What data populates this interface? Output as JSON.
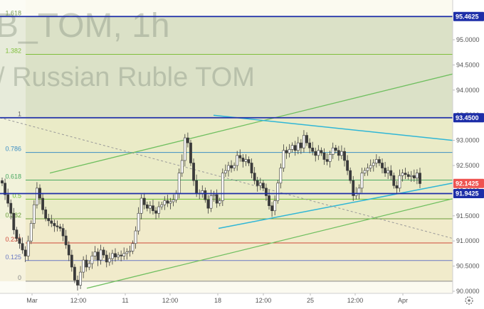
{
  "watermark": {
    "symbol": "B_TOM, 1h",
    "name": "/ Russian Ruble TOM"
  },
  "colors": {
    "up": "#26a69a",
    "down": "#ef5350",
    "body_dark": "#3b3b3b",
    "level_blue": "#1d2ea8",
    "green_line": "#6fbf5f",
    "cyan_line": "#2fb6d6",
    "dash": "#999999",
    "zone_top": "#d5dcc0",
    "zone_mid": "#e6e7c0",
    "zone_low": "#efe7c4"
  },
  "icons": {
    "settings": "gear-icon"
  },
  "chart_data": {
    "type": "candlestick",
    "title": "",
    "xlabel": "",
    "ylabel": "",
    "ylim": [
      90.0,
      95.6
    ],
    "y_ticks": [
      "95.0000",
      "94.5000",
      "94.0000",
      "93.5000",
      "93.0000",
      "92.5000",
      "92.0000",
      "91.5000",
      "91.0000",
      "90.5000",
      "90.0000"
    ],
    "x_ticks": [
      "Mar",
      "12:00",
      "11",
      "12:00",
      "18",
      "12:00",
      "25",
      "12:00",
      "Apr"
    ],
    "grid": false,
    "fib_levels": [
      {
        "label": "1.618",
        "value": 95.4625
      },
      {
        "label": "1.382",
        "value": 94.71
      },
      {
        "label": "1",
        "value": 93.45
      },
      {
        "label": "0.786",
        "value": 92.76
      },
      {
        "label": "0.618",
        "value": 92.21
      },
      {
        "label": "0.5",
        "value": 91.83
      },
      {
        "label": "0.382",
        "value": 91.44
      },
      {
        "label": "0.236",
        "value": 90.96
      },
      {
        "label": "0.125",
        "value": 90.61
      },
      {
        "label": "0",
        "value": 90.2
      }
    ],
    "price_tags": [
      {
        "label": "95.4625",
        "value": 95.4625,
        "color": "#1d2ea8"
      },
      {
        "label": "93.4500",
        "value": 93.45,
        "color": "#1d2ea8"
      },
      {
        "label": "92.1425",
        "value": 92.1425,
        "color": "#ef5350"
      },
      {
        "label": "91.9425",
        "value": 91.9425,
        "color": "#1d2ea8"
      }
    ],
    "horizontal_lines": [
      95.4625,
      93.45,
      91.9425
    ],
    "trend_lines": [
      {
        "name": "green-upper",
        "from": [
          "Mar 4",
          92.35
        ],
        "to": [
          "Apr 3",
          94.32
        ]
      },
      {
        "name": "green-lower",
        "from": [
          "Mar 8",
          90.06
        ],
        "to": [
          "Apr 3",
          91.84
        ]
      },
      {
        "name": "cyan-upper",
        "from": [
          "Mar 18",
          93.5
        ],
        "to": [
          "Apr 3",
          93.0
        ]
      },
      {
        "name": "cyan-lower",
        "from": [
          "Mar 18",
          91.25
        ],
        "to": [
          "Apr 3",
          92.15
        ]
      },
      {
        "name": "dashed-fib-diagonal",
        "from": [
          "Feb 29",
          93.45
        ],
        "to": [
          "Apr 3",
          91.05
        ]
      }
    ],
    "series": [
      {
        "name": "",
        "ohlc_close_path": [
          92.15,
          91.92,
          91.75,
          91.55,
          91.22,
          91.05,
          90.95,
          90.82,
          90.7,
          91.0,
          91.35,
          91.72,
          92.05,
          91.85,
          91.62,
          91.45,
          91.4,
          91.35,
          91.3,
          91.28,
          91.25,
          91.1,
          90.92,
          90.72,
          90.48,
          90.22,
          90.12,
          90.38,
          90.62,
          90.48,
          90.55,
          90.7,
          90.78,
          90.62,
          90.82,
          90.72,
          90.58,
          90.65,
          90.75,
          90.68,
          90.72,
          90.7,
          90.75,
          90.78,
          90.8,
          90.95,
          91.2,
          91.55,
          91.85,
          91.72,
          91.65,
          91.7,
          91.6,
          91.55,
          91.68,
          91.72,
          91.8,
          91.75,
          91.78,
          91.82,
          91.95,
          92.35,
          92.6,
          93.05,
          92.95,
          92.55,
          92.2,
          91.95,
          91.95,
          92.0,
          91.82,
          91.65,
          91.9,
          91.92,
          91.75,
          91.8,
          92.35,
          92.4,
          92.5,
          92.45,
          92.5,
          92.7,
          92.65,
          92.58,
          92.62,
          92.55,
          92.35,
          92.2,
          92.1,
          92.15,
          92.05,
          91.9,
          91.7,
          91.6,
          91.8,
          92.15,
          92.45,
          92.8,
          92.75,
          92.82,
          92.9,
          92.8,
          92.95,
          92.85,
          93.1,
          92.95,
          92.85,
          92.78,
          92.7,
          92.8,
          92.75,
          92.62,
          92.58,
          92.72,
          92.85,
          92.8,
          92.7,
          92.78,
          92.6,
          92.4,
          92.2,
          91.9,
          91.95,
          92.05,
          92.35,
          92.4,
          92.45,
          92.5,
          92.55,
          92.62,
          92.55,
          92.45,
          92.35,
          92.4,
          92.3,
          92.1,
          92.05,
          92.3,
          92.35,
          92.32,
          92.28,
          92.3,
          92.25,
          92.35,
          92.14
        ]
      }
    ]
  }
}
